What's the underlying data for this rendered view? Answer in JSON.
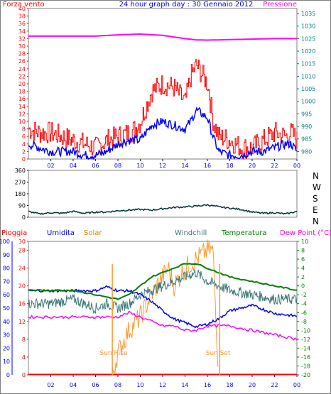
{
  "header": {
    "left_label": "Forza vento",
    "title": "24 hour graph day : 30 Gennaio 2012",
    "right_label": "Pressione"
  },
  "colors": {
    "wind_gust": "#ff0000",
    "wind_avg": "#0000ff",
    "pressure": "#ff00ff",
    "wind_dir": "#003333",
    "rain": "#ff0000",
    "humidity": "#0000ff",
    "solar": "#ff9933",
    "windchill": "#3c7878",
    "temperature": "#008000",
    "dewpoint": "#ff00ff",
    "axis_teal": "#008080",
    "frame": "#808080"
  },
  "top_panel": {
    "left_ticks": [
      "0",
      "2",
      "4",
      "6",
      "8",
      "10",
      "12",
      "14",
      "16",
      "18",
      "20",
      "22",
      "24",
      "26",
      "28",
      "30",
      "32",
      "34",
      "36",
      "38",
      "40"
    ],
    "right_ticks": [
      "980",
      "985",
      "990",
      "995",
      "1000",
      "1005",
      "1010",
      "1015",
      "1020",
      "1025",
      "1030",
      "1035"
    ],
    "hour_ticks": [
      "02",
      "04",
      "06",
      "08",
      "10",
      "12",
      "14",
      "16",
      "18",
      "20",
      "22",
      "00"
    ]
  },
  "direction_panel": {
    "ticks": [
      "0",
      "90",
      "180",
      "270",
      "360"
    ],
    "compass": [
      "N",
      "W",
      "S",
      "E",
      "N"
    ]
  },
  "bottom_panel": {
    "legend": [
      "Pioggia",
      "Umidita",
      "Solar",
      "Windchill",
      "Temperatura",
      "Dew Point (°C)"
    ],
    "left_ticks": [
      "0",
      "10",
      "20",
      "30",
      "40",
      "50",
      "60",
      "70",
      "80",
      "90",
      "100"
    ],
    "inner_ticks": [
      "0",
      "4",
      "8",
      "12",
      "16",
      "20",
      "24",
      "28",
      "30"
    ],
    "right_ticks": [
      "-20",
      "-18",
      "-16",
      "-14",
      "-12",
      "-10",
      "-8",
      "-6",
      "-4",
      "-2",
      "0",
      "2",
      "4",
      "6",
      "8",
      "10"
    ],
    "hour_ticks": [
      "02",
      "04",
      "06",
      "08",
      "10",
      "12",
      "14",
      "16",
      "18",
      "20",
      "22",
      "00"
    ],
    "sun_rise": "Sun Rise",
    "sun_set": "Sun Set"
  },
  "chart_data": [
    {
      "type": "line",
      "title": "24 hour graph day : 30 Gennaio 2012",
      "x_unit": "hour",
      "xlim": [
        0,
        24
      ],
      "ylim": [
        0,
        40
      ],
      "y2lim": [
        980,
        1035
      ],
      "series": [
        {
          "name": "Forza vento",
          "axis": "left",
          "x": [
            0,
            1,
            2,
            3,
            4,
            5,
            6,
            7,
            8,
            9,
            9.5,
            10,
            11,
            12,
            13,
            14,
            14.5,
            15,
            16,
            16.5,
            17,
            18,
            19,
            20,
            21,
            22,
            23,
            23.5,
            24
          ],
          "y": [
            8,
            7,
            7,
            6,
            5,
            4,
            3,
            5,
            6,
            7,
            8,
            10,
            18,
            20,
            19,
            15,
            22,
            25,
            20,
            10,
            6,
            5,
            3,
            3,
            5,
            7,
            6,
            7,
            5
          ]
        },
        {
          "name": "",
          "axis": "left",
          "x": [
            0,
            1,
            2,
            3,
            4,
            5,
            6,
            7,
            8,
            9,
            9.5,
            10,
            11,
            12,
            13,
            14,
            14.5,
            15,
            16,
            16.5,
            17,
            18,
            19,
            20,
            21,
            22,
            23,
            23.5,
            24
          ],
          "y": [
            4,
            3,
            2,
            2,
            2,
            1,
            1,
            2,
            4,
            5,
            5,
            5,
            9,
            10,
            9,
            8,
            10,
            13,
            11,
            6,
            2,
            1,
            1,
            2,
            2,
            3,
            4,
            4,
            2
          ]
        },
        {
          "name": "Pressione",
          "axis": "right",
          "x": [
            0,
            2,
            4,
            6,
            8,
            10,
            12,
            14,
            15,
            16,
            18,
            20,
            22,
            24
          ],
          "y": [
            1026,
            1026,
            1026,
            1026,
            1026.5,
            1026.8,
            1026.3,
            1025,
            1024.5,
            1024.4,
            1024.6,
            1024.8,
            1025,
            1025
          ]
        }
      ]
    },
    {
      "type": "line",
      "x_unit": "hour",
      "xlim": [
        0,
        24
      ],
      "ylim": [
        0,
        360
      ],
      "series": [
        {
          "name": "",
          "x": [
            0,
            1,
            2,
            3,
            4,
            5,
            6,
            7,
            8,
            9,
            10,
            11,
            12,
            13,
            14,
            15,
            16,
            17,
            18,
            19,
            20,
            21,
            22,
            23,
            24
          ],
          "y": [
            45,
            25,
            35,
            30,
            45,
            30,
            40,
            40,
            50,
            55,
            60,
            55,
            65,
            75,
            80,
            85,
            95,
            80,
            70,
            60,
            40,
            30,
            35,
            25,
            45
          ]
        }
      ]
    },
    {
      "type": "line",
      "x_unit": "hour",
      "xlim": [
        0,
        24
      ],
      "ylim": [
        0,
        100
      ],
      "y2lim": [
        -20,
        10
      ],
      "series": [
        {
          "name": "Umidita",
          "axis": "left",
          "x": [
            0,
            2,
            4,
            6,
            7,
            8,
            9,
            10,
            11,
            12,
            13,
            14,
            15,
            16,
            17,
            18,
            20,
            22,
            24
          ],
          "y": [
            63,
            63,
            63,
            63,
            66,
            63,
            63,
            60,
            55,
            48,
            42,
            39,
            36,
            38,
            42,
            48,
            52,
            46,
            44
          ]
        },
        {
          "name": "Temperatura",
          "axis": "right",
          "x": [
            0,
            2,
            4,
            6,
            8,
            9,
            10,
            11,
            12,
            13,
            14,
            15,
            16,
            17,
            18,
            20,
            22,
            24
          ],
          "y": [
            -1,
            -1,
            -1,
            -2,
            -3,
            -2,
            0,
            2,
            3,
            4,
            5,
            5,
            4,
            3,
            2,
            1,
            0,
            -1
          ]
        },
        {
          "name": "Windchill",
          "axis": "right",
          "x": [
            0,
            2,
            4,
            6,
            7,
            8,
            9,
            10,
            11,
            12,
            13,
            14,
            15,
            16,
            17,
            18,
            20,
            22,
            24
          ],
          "y": [
            -4,
            -4,
            -3,
            -5,
            -4,
            -5,
            -4,
            -2,
            -1,
            0,
            1,
            2,
            3,
            1,
            0,
            -1,
            -2,
            -3,
            -3
          ]
        },
        {
          "name": "Dew Point (°C)",
          "axis": "right",
          "x": [
            0,
            2,
            4,
            6,
            8,
            9,
            10,
            11,
            12,
            13,
            14,
            15,
            16,
            18,
            20,
            22,
            24
          ],
          "y": [
            -7,
            -7,
            -7,
            -7,
            -7,
            -6,
            -7,
            -8,
            -9,
            -9,
            -10,
            -10,
            -9,
            -9,
            -10,
            -11,
            -12
          ]
        },
        {
          "name": "Solar",
          "axis": "left",
          "x": [
            7.5,
            8,
            9,
            10,
            11,
            12,
            12.5,
            13,
            14,
            15,
            16,
            16.5,
            17
          ],
          "y": [
            0,
            5,
            10,
            13,
            18,
            22,
            24,
            20,
            24,
            26,
            28,
            28,
            0
          ]
        },
        {
          "name": "Pioggia",
          "axis": "left",
          "x": [
            0,
            24
          ],
          "y": [
            0,
            0
          ]
        }
      ],
      "annotations": [
        {
          "label": "Sun Rise",
          "x": 7.5
        },
        {
          "label": "Sun Set",
          "x": 17.1
        }
      ]
    }
  ]
}
